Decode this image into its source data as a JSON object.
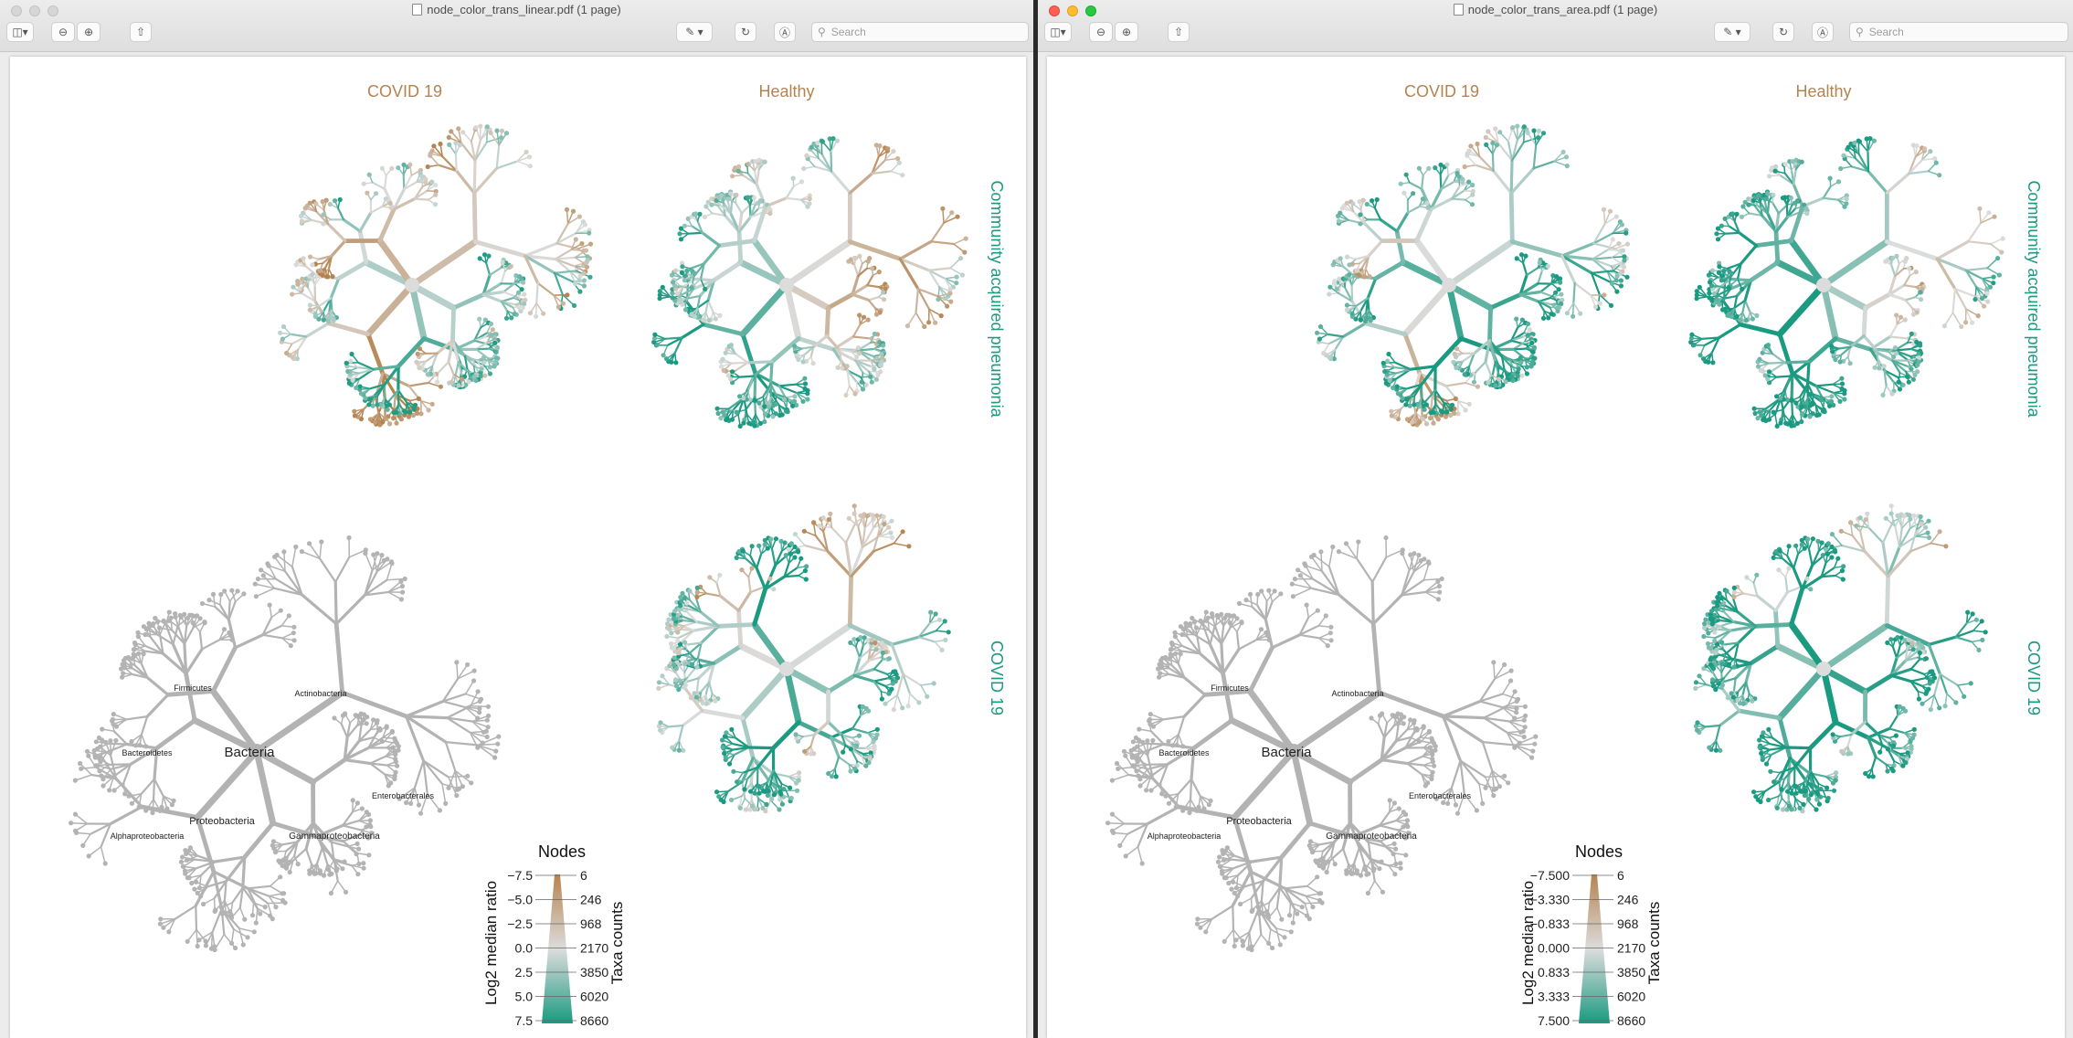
{
  "colors": {
    "brown": "#b5834f",
    "teal": "#1a9a80",
    "grey_tree": "#b3b3b3",
    "neutral": "#dcdcdc"
  },
  "toolbar": {
    "sidebar_icon": "sidebar-icon",
    "zoom_out_icon": "zoom-out-icon",
    "zoom_in_icon": "zoom-in-icon",
    "share_icon": "share-icon",
    "markup_icon": "pen-markup-icon",
    "rotate_icon": "rotate-icon",
    "annotate_icon": "annotate-icon",
    "search_placeholder": "Search"
  },
  "windows": [
    {
      "title": "node_color_trans_linear.pdf (1 page)",
      "col_labels": [
        "COVID 19",
        "Healthy"
      ],
      "row_labels": [
        "Community acquired pneumonia",
        "COVID 19"
      ],
      "tree_labels": [
        "Bacteria",
        "Proteobacteria",
        "Gammaproteobacteria",
        "Actinobacteria",
        "Firmicutes",
        "Bacteroidetes",
        "Enterobacterales",
        "Alphaproteobacteria"
      ],
      "legend": {
        "title": "Nodes",
        "ratio_label": "Log2 median ratio",
        "counts_label": "Taxa counts",
        "ratio_ticks": [
          "−7.5",
          "−5.0",
          "−2.5",
          "0.0",
          "2.5",
          "5.0",
          "7.5"
        ],
        "count_ticks": [
          "6",
          "246",
          "968",
          "2170",
          "3850",
          "6020",
          "8660"
        ]
      },
      "teal_bias": 0.0
    },
    {
      "title": "node_color_trans_area.pdf (1 page)",
      "col_labels": [
        "COVID 19",
        "Healthy"
      ],
      "row_labels": [
        "Community acquired pneumonia",
        "COVID 19"
      ],
      "tree_labels": [
        "Bacteria",
        "Proteobacteria",
        "Gammaproteobacteria",
        "Actinobacteria",
        "Firmicutes",
        "Bacteroidetes",
        "Enterobacterales",
        "Alphaproteobacteria"
      ],
      "legend": {
        "title": "Nodes",
        "ratio_label": "Log2 median ratio",
        "counts_label": "Taxa counts",
        "ratio_ticks": [
          "−7.500",
          "−3.330",
          "−0.833",
          "0.000",
          "0.833",
          "3.333",
          "7.500"
        ],
        "count_ticks": [
          "6",
          "246",
          "968",
          "2170",
          "3850",
          "6020",
          "8660"
        ]
      },
      "teal_bias": 0.35
    }
  ]
}
